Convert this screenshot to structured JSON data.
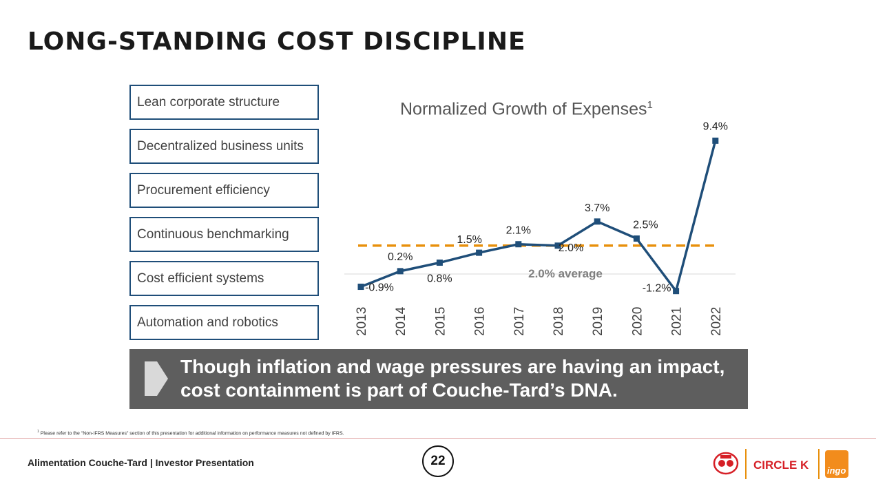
{
  "slide": {
    "title": "LONG-STANDING COST DISCIPLINE",
    "pillars": [
      "Lean corporate structure",
      "Decentralized business units",
      "Procurement efficiency",
      "Continuous benchmarking",
      "Cost efficient systems",
      "Automation and robotics"
    ],
    "banner_line1": "Though inflation and wage pressures are having an impact,",
    "banner_line2": "cost containment is part of Couche-Tard’s DNA.",
    "footnote_marker": "1",
    "footnote": "Please refer to the “Non-IFRS Measures” section of this presentation for additional information on performance measures not defined by IFRS.",
    "footer_left": "Alimentation Couche-Tard | Investor Presentation",
    "page_number": "22",
    "logo_circle_k": "CIRCLE K",
    "logo_ingo": "ingo"
  },
  "chart_data": {
    "type": "line",
    "title": "Normalized Growth of Expenses",
    "title_superscript": "1",
    "categories": [
      "2013",
      "2014",
      "2015",
      "2016",
      "2017",
      "2018",
      "2019",
      "2020",
      "2021",
      "2022"
    ],
    "series": [
      {
        "values": [
          -0.9,
          0.2,
          0.8,
          1.5,
          2.1,
          2.0,
          3.7,
          2.5,
          -1.2,
          9.4
        ]
      }
    ],
    "data_labels": [
      "-0.9%",
      "0.2%",
      "0.8%",
      "1.5%",
      "2.1%",
      "2.0%",
      "3.7%",
      "2.5%",
      "-1.2%",
      "9.4%"
    ],
    "average": {
      "value": 2.0,
      "label": "2.0% average"
    },
    "colors": {
      "line": "#1f4e79",
      "average": "#e8900c",
      "zero": "#d9d9d9"
    }
  }
}
